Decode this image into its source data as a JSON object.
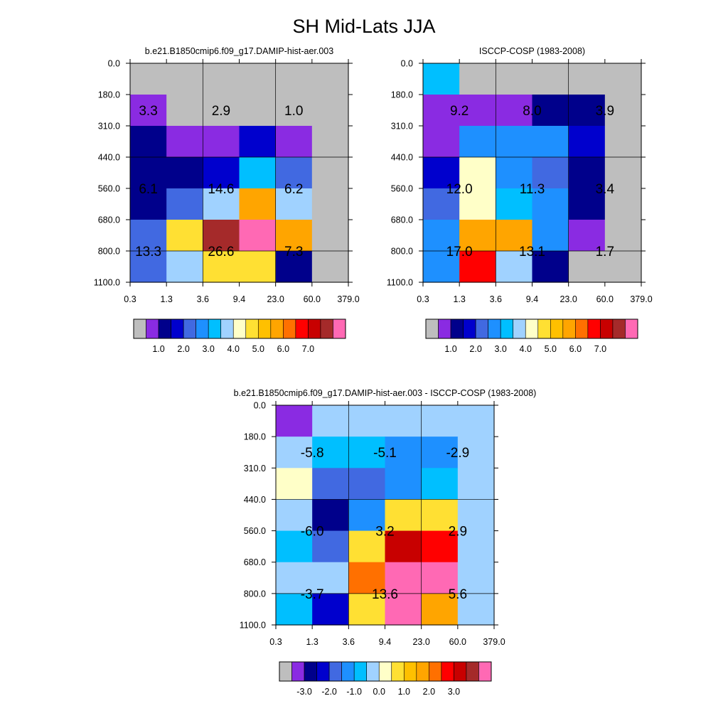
{
  "title": "SH Mid-Lats JJA",
  "colors": {
    "missing": "#bebebe",
    "palette": [
      "#bebebe",
      "#8a2be2",
      "#00008b",
      "#0000cd",
      "#4169e1",
      "#1e90ff",
      "#00bfff",
      "#a0d2ff",
      "#ffffc8",
      "#ffe033",
      "#ffc000",
      "#ffa500",
      "#ff7000",
      "#ff0000",
      "#c80000",
      "#a52a2a",
      "#ff69b4"
    ]
  },
  "chart_data": [
    {
      "type": "heatmap",
      "title": "b.e21.B1850cmip6.f09_g17.DAMIP-hist-aer.003",
      "x_tick_labels": [
        "0.3",
        "1.3",
        "3.6",
        "9.4",
        "23.0",
        "60.0",
        "379.0"
      ],
      "y_tick_labels": [
        "0.0",
        "180.0",
        "310.0",
        "440.0",
        "560.0",
        "680.0",
        "800.0",
        "1100.0"
      ],
      "cells_top_to_bottom": [
        [
          0,
          0,
          0,
          0,
          0,
          0
        ],
        [
          1,
          0,
          0,
          0,
          0,
          0
        ],
        [
          2,
          1,
          1,
          3,
          1,
          0
        ],
        [
          2,
          2,
          3,
          6,
          4,
          0
        ],
        [
          2,
          4,
          7,
          11,
          7,
          0
        ],
        [
          4,
          9,
          15,
          16,
          11,
          0
        ],
        [
          4,
          7,
          9,
          9,
          2,
          0
        ]
      ],
      "annotations": [
        {
          "text": "3.3",
          "col": 0.5,
          "row": 1.5
        },
        {
          "text": "2.9",
          "col": 2.5,
          "row": 1.5
        },
        {
          "text": "1.0",
          "col": 4.5,
          "row": 1.5
        },
        {
          "text": "6.1",
          "col": 0.5,
          "row": 4
        },
        {
          "text": "14.6",
          "col": 2.5,
          "row": 4
        },
        {
          "text": "6.2",
          "col": 4.5,
          "row": 4
        },
        {
          "text": "13.3",
          "col": 0.5,
          "row": 6
        },
        {
          "text": "26.6",
          "col": 2.5,
          "row": 6
        },
        {
          "text": "7.3",
          "col": 4.5,
          "row": 6
        }
      ],
      "colorbar_labels": [
        "1.0",
        "2.0",
        "3.0",
        "4.0",
        "5.0",
        "6.0",
        "7.0"
      ]
    },
    {
      "type": "heatmap",
      "title": "ISCCP-COSP (1983-2008)",
      "x_tick_labels": [
        "0.3",
        "1.3",
        "3.6",
        "9.4",
        "23.0",
        "60.0",
        "379.0"
      ],
      "y_tick_labels": [
        "0.0",
        "180.0",
        "310.0",
        "440.0",
        "560.0",
        "680.0",
        "800.0",
        "1100.0"
      ],
      "cells_top_to_bottom": [
        [
          6,
          0,
          0,
          0,
          0,
          0
        ],
        [
          1,
          1,
          1,
          2,
          2,
          0
        ],
        [
          1,
          5,
          5,
          5,
          3,
          0
        ],
        [
          3,
          8,
          5,
          4,
          2,
          0
        ],
        [
          4,
          8,
          6,
          5,
          2,
          0
        ],
        [
          5,
          11,
          11,
          5,
          1,
          0
        ],
        [
          5,
          13,
          7,
          2,
          0,
          0
        ]
      ],
      "annotations": [
        {
          "text": "9.2",
          "col": 1,
          "row": 1.5
        },
        {
          "text": "8.0",
          "col": 3,
          "row": 1.5
        },
        {
          "text": "3.9",
          "col": 5,
          "row": 1.5
        },
        {
          "text": "12.0",
          "col": 1,
          "row": 4
        },
        {
          "text": "11.3",
          "col": 3,
          "row": 4
        },
        {
          "text": "3.4",
          "col": 5,
          "row": 4
        },
        {
          "text": "17.0",
          "col": 1,
          "row": 6
        },
        {
          "text": "13.1",
          "col": 3,
          "row": 6
        },
        {
          "text": "1.7",
          "col": 5,
          "row": 6
        }
      ],
      "colorbar_labels": [
        "1.0",
        "2.0",
        "3.0",
        "4.0",
        "5.0",
        "6.0",
        "7.0"
      ]
    },
    {
      "type": "heatmap",
      "title": "b.e21.B1850cmip6.f09_g17.DAMIP-hist-aer.003 - ISCCP-COSP (1983-2008)",
      "x_tick_labels": [
        "0.3",
        "1.3",
        "3.6",
        "9.4",
        "23.0",
        "60.0",
        "379.0"
      ],
      "y_tick_labels": [
        "0.0",
        "180.0",
        "310.0",
        "440.0",
        "560.0",
        "680.0",
        "800.0",
        "1100.0"
      ],
      "cells_top_to_bottom": [
        [
          1,
          7,
          7,
          7,
          7,
          7
        ],
        [
          7,
          6,
          6,
          5,
          5,
          7
        ],
        [
          8,
          4,
          4,
          5,
          6,
          7
        ],
        [
          7,
          2,
          5,
          9,
          9,
          7
        ],
        [
          6,
          4,
          9,
          14,
          13,
          7
        ],
        [
          7,
          7,
          12,
          16,
          16,
          7
        ],
        [
          6,
          3,
          9,
          16,
          11,
          7
        ]
      ],
      "annotations": [
        {
          "text": "-5.8",
          "col": 1,
          "row": 1.5
        },
        {
          "text": "-5.1",
          "col": 3,
          "row": 1.5
        },
        {
          "text": "-2.9",
          "col": 5,
          "row": 1.5
        },
        {
          "text": "-6.0",
          "col": 1,
          "row": 4
        },
        {
          "text": "3.2",
          "col": 3,
          "row": 4
        },
        {
          "text": "2.9",
          "col": 5,
          "row": 4
        },
        {
          "text": "-3.7",
          "col": 1,
          "row": 6
        },
        {
          "text": "13.6",
          "col": 3,
          "row": 6
        },
        {
          "text": "5.6",
          "col": 5,
          "row": 6
        }
      ],
      "colorbar_labels": [
        "-3.0",
        "-2.0",
        "-1.0",
        "0.0",
        "1.0",
        "2.0",
        "3.0"
      ]
    }
  ]
}
